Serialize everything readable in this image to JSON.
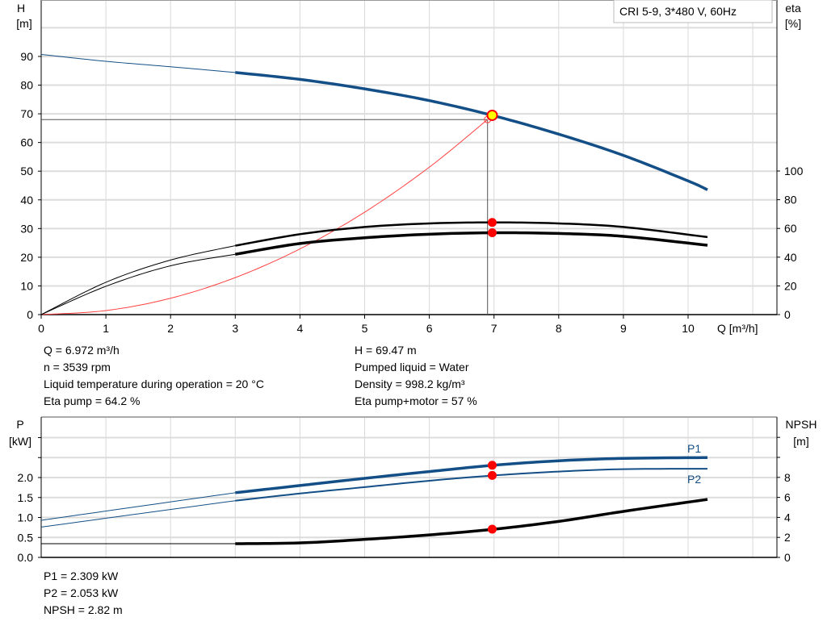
{
  "chart_data": [
    {
      "type": "line",
      "title": "CRI 5-9, 3*480 V, 60Hz",
      "xlabel": "Q [m³/h]",
      "ylabel": [
        "H",
        "[m]"
      ],
      "y2label": [
        "eta",
        "[%]"
      ],
      "xlim": [
        0,
        11.3
      ],
      "ylim": [
        0,
        100
      ],
      "y2lim": [
        0,
        220
      ],
      "grid": true,
      "xticks": [
        0,
        1,
        2,
        3,
        4,
        5,
        6,
        7,
        8,
        9,
        10
      ],
      "yticks": [
        0,
        10,
        20,
        30,
        40,
        50,
        60,
        70,
        80,
        90
      ],
      "y2ticks": [
        0,
        20,
        40,
        60,
        80,
        100
      ],
      "colors": {
        "H": "#134f86",
        "eta": "#000000",
        "system": "#ff4040",
        "point": "#ff0000",
        "duty": "#ffff00"
      },
      "series": [
        {
          "id": "H",
          "axis": "y",
          "x": [
            0,
            1,
            2,
            3,
            4,
            5,
            6,
            7,
            8,
            9,
            10,
            10.3
          ],
          "y": [
            90.7,
            88.3,
            86.4,
            84.4,
            82.0,
            78.7,
            74.6,
            69.3,
            62.9,
            55.5,
            46.6,
            43.5
          ],
          "thin_until": 3
        },
        {
          "id": "eta_pump",
          "axis": "y2",
          "x": [
            0,
            1,
            2,
            3,
            4,
            5,
            6,
            7,
            8,
            9,
            10.3
          ],
          "y": [
            0,
            22.5,
            38,
            48,
            56,
            61,
            63.5,
            64.2,
            63.5,
            61,
            54
          ],
          "thin_until": 3
        },
        {
          "id": "eta_pump_motor",
          "axis": "y2",
          "x": [
            0,
            1,
            2,
            3,
            4,
            5,
            6,
            7,
            8,
            9,
            10.3
          ],
          "y": [
            0,
            19.7,
            34,
            42,
            49.5,
            53.5,
            56,
            57,
            56.5,
            54.5,
            48.3
          ],
          "thin_until": 3
        },
        {
          "id": "system",
          "axis": "y",
          "x": [
            0,
            1,
            2,
            3,
            4,
            5,
            6,
            6.9
          ],
          "y": [
            0,
            1.4,
            5.7,
            12.9,
            22.9,
            35.7,
            51.4,
            68
          ]
        }
      ],
      "duty_point": {
        "Q": 6.972,
        "H": 69.47,
        "eta_pump": 64.2,
        "eta_pump_motor": 57
      },
      "requested_point": {
        "Q": 6.9,
        "H": 68
      }
    },
    {
      "type": "line",
      "ylabel": [
        "P",
        "[kW]"
      ],
      "y2label": [
        "NPSH",
        "[m]"
      ],
      "xlim": [
        0,
        11.3
      ],
      "ylim": [
        0,
        3.5
      ],
      "y2lim": [
        0,
        14
      ],
      "grid": true,
      "yticks": [
        "0.0",
        "0.5",
        "1.0",
        "1.5",
        "2.0"
      ],
      "y2ticks": [
        0,
        2,
        4,
        6,
        8
      ],
      "series": [
        {
          "id": "P1",
          "name": "P1",
          "axis": "y",
          "x": [
            0,
            3,
            4,
            5,
            6,
            7,
            8,
            9,
            10.3
          ],
          "y": [
            0.93,
            1.62,
            1.8,
            1.98,
            2.15,
            2.309,
            2.42,
            2.48,
            2.5
          ],
          "thin_until": 3
        },
        {
          "id": "P2",
          "name": "P2",
          "axis": "y",
          "x": [
            0,
            3,
            4,
            5,
            6,
            7,
            8,
            9,
            10.3
          ],
          "y": [
            0.76,
            1.42,
            1.6,
            1.76,
            1.92,
            2.053,
            2.15,
            2.21,
            2.22
          ],
          "thin_until": 3
        },
        {
          "id": "NPSH",
          "axis": "y2",
          "x": [
            0,
            3,
            4,
            5,
            6,
            7,
            8,
            9,
            10.3
          ],
          "y": [
            1.37,
            1.37,
            1.45,
            1.8,
            2.25,
            2.82,
            3.6,
            4.6,
            5.8
          ],
          "thin_until": 3
        }
      ],
      "duty_point": {
        "Q": 6.972,
        "P1": 2.309,
        "P2": 2.053,
        "NPSH": 2.82
      }
    }
  ],
  "info": {
    "left": [
      "Q = 6.972 m³/h",
      "n = 3539 rpm",
      "Liquid temperature during operation = 20 °C",
      "Eta pump = 64.2 %"
    ],
    "right": [
      "H = 69.47 m",
      "Pumped liquid = Water",
      "Density = 998.2 kg/m³",
      "Eta pump+motor = 57 %"
    ],
    "bottom": [
      "P1 = 2.309 kW",
      "P2 = 2.053 kW",
      "NPSH = 2.82 m"
    ]
  }
}
